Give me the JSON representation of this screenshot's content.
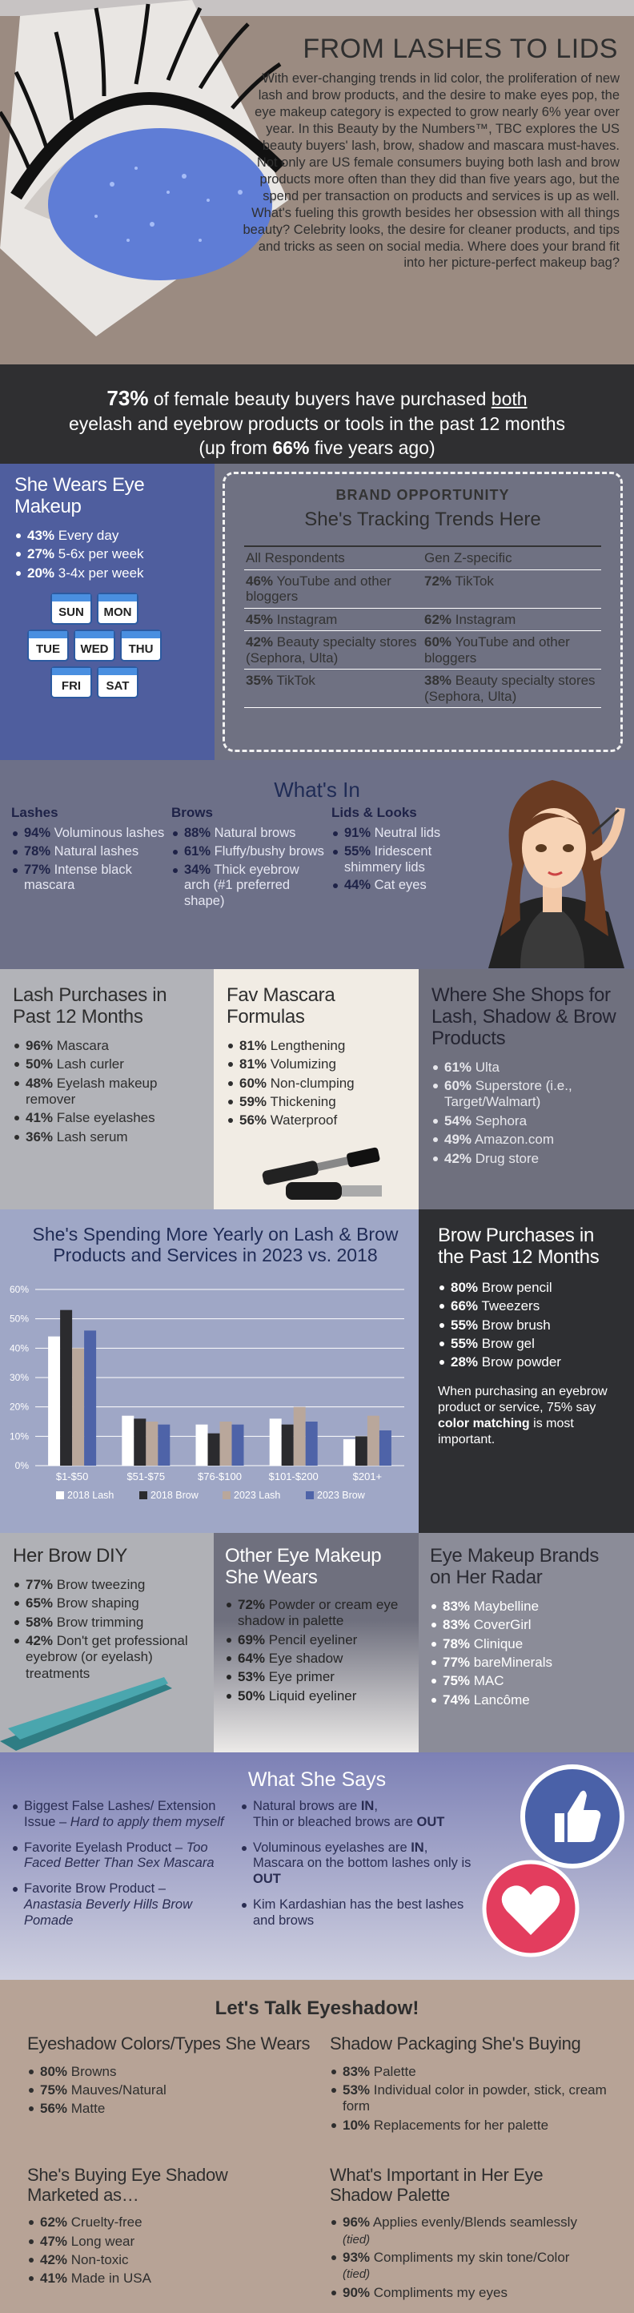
{
  "intro": {
    "title": "FROM LASHES TO LIDS",
    "body": "With ever-changing trends in lid color, the proliferation of new lash and brow products, and the desire to make eyes pop, the eye makeup category is expected to grow nearly 6% year over year. In this Beauty by the Numbers™, TBC explores the US beauty buyers' lash, brow, shadow and mascara must-haves. Not only are US female consumers buying both lash and brow products more often than they did than five years ago, but the spend per transaction on products and services is up as well. What's fueling this growth besides her obsession with all things beauty? Celebrity looks, the desire for cleaner products, and tips and tricks as seen on social media. Where does your brand fit into her picture-perfect makeup bag?"
  },
  "banner": {
    "pct": "73%",
    "line1a": " of female beauty buyers have purchased ",
    "both": "both",
    "line2": "eyelash and eyebrow products or tools in the past 12 months",
    "line3a": "(up from ",
    "pct2": "66%",
    "line3b": " five years ago)"
  },
  "wears": {
    "title": "She Wears Eye Makeup",
    "items": [
      {
        "v": "43%",
        "t": " Every day"
      },
      {
        "v": "27%",
        "t": " 5-6x per week"
      },
      {
        "v": "20%",
        "t": " 3-4x per week"
      }
    ],
    "days": [
      "SUN",
      "MON",
      "TUE",
      "WED",
      "THU",
      "FRI",
      "SAT"
    ]
  },
  "brand": {
    "label": "BRAND OPPORTUNITY",
    "subtitle": "She's Tracking Trends Here",
    "col1": "All Respondents",
    "col2": "Gen Z-specific",
    "rows": [
      {
        "a_v": "46%",
        "a_t": " YouTube and other bloggers",
        "b_v": "72%",
        "b_t": " TikTok"
      },
      {
        "a_v": "45%",
        "a_t": " Instagram",
        "b_v": "62%",
        "b_t": " Instagram"
      },
      {
        "a_v": "42%",
        "a_t": " Beauty specialty stores (Sephora, Ulta)",
        "b_v": "60%",
        "b_t": " YouTube and other bloggers"
      },
      {
        "a_v": "35%",
        "a_t": " TikTok",
        "b_v": "38%",
        "b_t": " Beauty specialty stores (Sephora, Ulta)"
      }
    ]
  },
  "whatsin": {
    "title": "What's In",
    "cols": [
      {
        "head": "Lashes",
        "items": [
          {
            "v": "94%",
            "t": " Voluminous lashes"
          },
          {
            "v": "78%",
            "t": " Natural lashes"
          },
          {
            "v": "77%",
            "t": " Intense black mascara"
          }
        ]
      },
      {
        "head": "Brows",
        "items": [
          {
            "v": "88%",
            "t": " Natural brows"
          },
          {
            "v": "61%",
            "t": " Fluffy/bushy brows"
          },
          {
            "v": "34%",
            "t": " Thick eyebrow arch (#1 preferred shape)"
          }
        ]
      },
      {
        "head": "Lids & Looks",
        "items": [
          {
            "v": "91%",
            "t": " Neutral lids"
          },
          {
            "v": "55%",
            "t": " Iridescent shimmery lids"
          },
          {
            "v": "44%",
            "t": " Cat eyes"
          }
        ]
      }
    ]
  },
  "lash": {
    "title": "Lash Purchases in Past 12 Months",
    "items": [
      {
        "v": "96%",
        "t": " Mascara"
      },
      {
        "v": "50%",
        "t": " Lash curler"
      },
      {
        "v": "48%",
        "t": " Eyelash makeup remover"
      },
      {
        "v": "41%",
        "t": " False eyelashes"
      },
      {
        "v": "36%",
        "t": " Lash serum"
      }
    ]
  },
  "mascara": {
    "title": "Fav Mascara Formulas",
    "items": [
      {
        "v": "81%",
        "t": " Lengthening"
      },
      {
        "v": "81%",
        "t": " Volumizing"
      },
      {
        "v": "60%",
        "t": " Non-clumping"
      },
      {
        "v": "59%",
        "t": " Thickening"
      },
      {
        "v": "56%",
        "t": " Waterproof"
      }
    ]
  },
  "shops": {
    "title": "Where She Shops for Lash, Shadow & Brow Products",
    "items": [
      {
        "v": "61%",
        "t": " Ulta"
      },
      {
        "v": "60%",
        "t": " Superstore (i.e., Target/Walmart)"
      },
      {
        "v": "54%",
        "t": " Sephora"
      },
      {
        "v": "49%",
        "t": " Amazon.com"
      },
      {
        "v": "42%",
        "t": " Drug store"
      }
    ]
  },
  "chart_data": {
    "type": "bar",
    "title": "She's Spending More Yearly on Lash & Brow Products and Services in 2023 vs. 2018",
    "categories": [
      "$1-$50",
      "$51-$75",
      "$76-$100",
      "$101-$200",
      "$201+"
    ],
    "ylim": [
      0,
      60
    ],
    "yticks": [
      "0%",
      "10%",
      "20%",
      "30%",
      "40%",
      "50%",
      "60%"
    ],
    "legend": "bottom",
    "grid": true,
    "series": [
      {
        "name": "2018 Lash",
        "color": "#ffffff",
        "values": [
          44,
          17,
          14,
          16,
          9
        ]
      },
      {
        "name": "2018 Brow",
        "color": "#2b2b2e",
        "values": [
          53,
          16,
          11,
          14,
          10
        ]
      },
      {
        "name": "2023 Lash",
        "color": "#b9a79b",
        "values": [
          40,
          15,
          15,
          20,
          17
        ]
      },
      {
        "name": "2023 Brow",
        "color": "#4e63a8",
        "values": [
          46,
          14,
          14,
          15,
          12
        ]
      }
    ]
  },
  "browbuy": {
    "title": "Brow Purchases in the Past 12 Months",
    "items": [
      {
        "v": "80%",
        "t": " Brow pencil"
      },
      {
        "v": "66%",
        "t": " Tweezers"
      },
      {
        "v": "55%",
        "t": " Brow brush"
      },
      {
        "v": "55%",
        "t": " Brow gel"
      },
      {
        "v": "28%",
        "t": " Brow powder"
      }
    ],
    "note_a": "When purchasing an eyebrow product or service, 75% say ",
    "note_b": "color matching",
    "note_c": " is most important."
  },
  "diy": {
    "title": "Her Brow DIY",
    "items": [
      {
        "v": "77%",
        "t": " Brow tweezing"
      },
      {
        "v": "65%",
        "t": " Brow shaping"
      },
      {
        "v": "58%",
        "t": " Brow trimming"
      },
      {
        "v": "42%",
        "t": " Don't get professional eyebrow (or eyelash) treatments"
      }
    ]
  },
  "other": {
    "title": "Other Eye Makeup She Wears",
    "items": [
      {
        "v": "72%",
        "t": " Powder or cream eye shadow in palette"
      },
      {
        "v": "69%",
        "t": " Pencil eyeliner"
      },
      {
        "v": "64%",
        "t": " Eye shadow"
      },
      {
        "v": "53%",
        "t": " Eye primer"
      },
      {
        "v": "50%",
        "t": " Liquid eyeliner"
      }
    ]
  },
  "radar": {
    "title": "Eye Makeup Brands on Her Radar",
    "items": [
      {
        "v": "83%",
        "t": " Maybelline"
      },
      {
        "v": "83%",
        "t": " CoverGirl"
      },
      {
        "v": "78%",
        "t": " Clinique"
      },
      {
        "v": "77%",
        "t": " bareMinerals"
      },
      {
        "v": "75%",
        "t": " MAC"
      },
      {
        "v": "74%",
        "t": " Lancôme"
      }
    ]
  },
  "says": {
    "title": "What She Says",
    "left": [
      {
        "a": "Biggest False Lashes/ Extension Issue – ",
        "i": "Hard to apply them myself"
      },
      {
        "a": "Favorite Eyelash Product – ",
        "i": "Too Faced Better Than Sex Mascara"
      },
      {
        "a": "Favorite Brow Product – ",
        "i": "Anastasia Beverly Hills Brow Pomade"
      }
    ],
    "right": [
      {
        "a": "Natural brows are ",
        "b": "IN",
        "c": ",\nThin or bleached brows are ",
        "d": "OUT"
      },
      {
        "a": "Voluminous eyelashes are ",
        "b": "IN",
        "c": ", Mascara on the bottom lashes only is ",
        "d": "OUT"
      },
      {
        "a": "Kim Kardashian has the best lashes and brows",
        "b": "",
        "c": "",
        "d": ""
      }
    ]
  },
  "shadow": {
    "title": "Let's Talk Eyeshadow!",
    "colors": {
      "title": "Eyeshadow Colors/Types She Wears",
      "items": [
        {
          "v": "80%",
          "t": " Browns"
        },
        {
          "v": "75%",
          "t": " Mauves/Natural"
        },
        {
          "v": "56%",
          "t": " Matte"
        }
      ]
    },
    "pack": {
      "title": "Shadow Packaging She's Buying",
      "items": [
        {
          "v": "83%",
          "t": " Palette"
        },
        {
          "v": "53%",
          "t": " Individual color in powder, stick, cream form"
        },
        {
          "v": "10%",
          "t": " Replacements for her palette"
        }
      ]
    },
    "market": {
      "title": "She's Buying Eye Shadow Marketed as…",
      "items": [
        {
          "v": "62%",
          "t": " Cruelty-free"
        },
        {
          "v": "47%",
          "t": " Long wear"
        },
        {
          "v": "42%",
          "t": " Non-toxic"
        },
        {
          "v": "41%",
          "t": " Made in USA"
        }
      ]
    },
    "important": {
      "title": "What's Important in Her Eye Shadow Palette",
      "items": [
        {
          "v": "96%",
          "t": " Applies evenly/Blends seamlessly",
          "n": "(tied)"
        },
        {
          "v": "93%",
          "t": " Compliments my skin tone/Color",
          "n": "(tied)"
        },
        {
          "v": "90%",
          "t": " Compliments my eyes",
          "n": ""
        }
      ]
    }
  }
}
